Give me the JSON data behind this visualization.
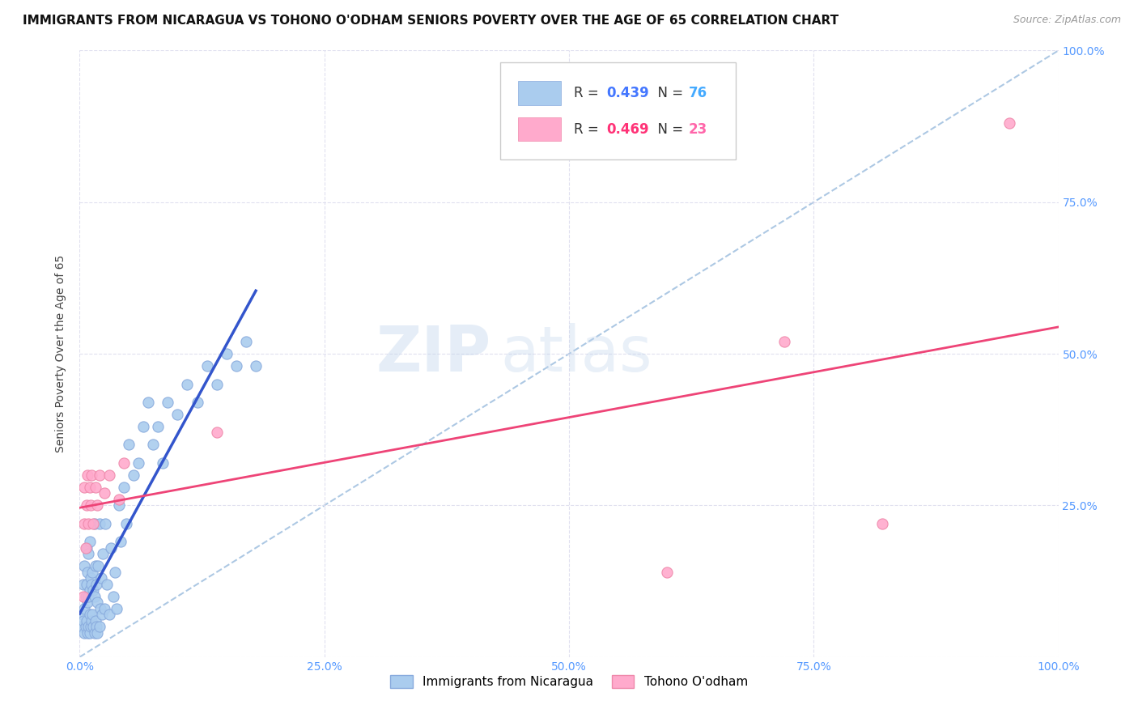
{
  "title": "IMMIGRANTS FROM NICARAGUA VS TOHONO O'ODHAM SENIORS POVERTY OVER THE AGE OF 65 CORRELATION CHART",
  "source": "Source: ZipAtlas.com",
  "ylabel": "Seniors Poverty Over the Age of 65",
  "watermark_zip": "ZIP",
  "watermark_atlas": "atlas",
  "xlim": [
    0,
    1
  ],
  "ylim": [
    0,
    1
  ],
  "xticks": [
    0.0,
    0.25,
    0.5,
    0.75,
    1.0
  ],
  "yticks": [
    0.0,
    0.25,
    0.5,
    0.75,
    1.0
  ],
  "xticklabels": [
    "0.0%",
    "25.0%",
    "50.0%",
    "75.0%",
    "100.0%"
  ],
  "right_yticklabels": [
    "",
    "25.0%",
    "50.0%",
    "75.0%",
    "100.0%"
  ],
  "blue_R": "0.439",
  "blue_N": "76",
  "pink_R": "0.469",
  "pink_N": "23",
  "blue_scatter_color": "#aaccee",
  "blue_scatter_edge": "#88aadd",
  "pink_scatter_color": "#ffaacc",
  "pink_scatter_edge": "#ee88aa",
  "blue_line_color": "#3355cc",
  "pink_line_color": "#ee4477",
  "dashed_line_color": "#99bbdd",
  "tick_label_color": "#5599ff",
  "grid_color": "#ddddee",
  "legend_R_color": "#4477ff",
  "legend_N_color": "#44aaff",
  "legend_pink_R_color": "#ff3377",
  "legend_pink_N_color": "#ff66aa",
  "blue_x": [
    0.002,
    0.003,
    0.004,
    0.004,
    0.005,
    0.005,
    0.005,
    0.006,
    0.006,
    0.007,
    0.007,
    0.007,
    0.008,
    0.008,
    0.008,
    0.009,
    0.009,
    0.009,
    0.01,
    0.01,
    0.01,
    0.01,
    0.011,
    0.011,
    0.012,
    0.012,
    0.013,
    0.013,
    0.014,
    0.014,
    0.015,
    0.015,
    0.015,
    0.016,
    0.016,
    0.017,
    0.017,
    0.018,
    0.018,
    0.019,
    0.02,
    0.02,
    0.021,
    0.022,
    0.023,
    0.024,
    0.025,
    0.026,
    0.028,
    0.03,
    0.032,
    0.034,
    0.036,
    0.038,
    0.04,
    0.042,
    0.045,
    0.048,
    0.05,
    0.055,
    0.06,
    0.065,
    0.07,
    0.075,
    0.08,
    0.085,
    0.09,
    0.1,
    0.11,
    0.12,
    0.13,
    0.14,
    0.15,
    0.16,
    0.17,
    0.18
  ],
  "blue_y": [
    0.05,
    0.07,
    0.06,
    0.12,
    0.04,
    0.08,
    0.15,
    0.05,
    0.1,
    0.06,
    0.12,
    0.18,
    0.04,
    0.09,
    0.14,
    0.05,
    0.1,
    0.17,
    0.04,
    0.07,
    0.11,
    0.19,
    0.05,
    0.13,
    0.06,
    0.12,
    0.07,
    0.14,
    0.05,
    0.11,
    0.04,
    0.1,
    0.22,
    0.06,
    0.15,
    0.05,
    0.12,
    0.04,
    0.09,
    0.15,
    0.05,
    0.22,
    0.08,
    0.13,
    0.07,
    0.17,
    0.08,
    0.22,
    0.12,
    0.07,
    0.18,
    0.1,
    0.14,
    0.08,
    0.25,
    0.19,
    0.28,
    0.22,
    0.35,
    0.3,
    0.32,
    0.38,
    0.42,
    0.35,
    0.38,
    0.32,
    0.42,
    0.4,
    0.45,
    0.42,
    0.48,
    0.45,
    0.5,
    0.48,
    0.52,
    0.48
  ],
  "pink_x": [
    0.004,
    0.005,
    0.005,
    0.006,
    0.007,
    0.008,
    0.009,
    0.01,
    0.011,
    0.012,
    0.014,
    0.016,
    0.018,
    0.02,
    0.025,
    0.03,
    0.04,
    0.045,
    0.14,
    0.6,
    0.72,
    0.82,
    0.95
  ],
  "pink_y": [
    0.1,
    0.22,
    0.28,
    0.18,
    0.25,
    0.3,
    0.22,
    0.28,
    0.25,
    0.3,
    0.22,
    0.28,
    0.25,
    0.3,
    0.27,
    0.3,
    0.26,
    0.32,
    0.37,
    0.14,
    0.52,
    0.22,
    0.88
  ],
  "background_color": "#ffffff",
  "title_fontsize": 11,
  "source_fontsize": 9,
  "axis_tick_fontsize": 10,
  "ylabel_fontsize": 10
}
